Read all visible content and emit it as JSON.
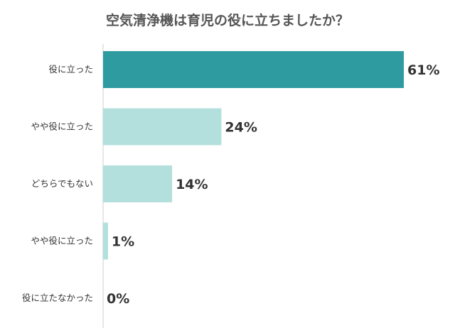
{
  "chart_data": {
    "type": "bar",
    "orientation": "horizontal",
    "title": "空気清浄機は育児の役に立ちましたか？",
    "categories": [
      "役に立った",
      "やや役に立った",
      "どちらでもない",
      "やや役に立った",
      "役に立たなかった"
    ],
    "values": [
      61,
      24,
      14,
      1,
      0
    ],
    "value_labels": [
      "61%",
      "24%",
      "14%",
      "1%",
      "0%"
    ],
    "xlim": [
      0,
      100
    ],
    "grid": false,
    "colors": {
      "highlight": "#2e9ba1",
      "normal": "#b3e0dd",
      "axis": "#cccccc"
    },
    "highlight_index": 0
  }
}
